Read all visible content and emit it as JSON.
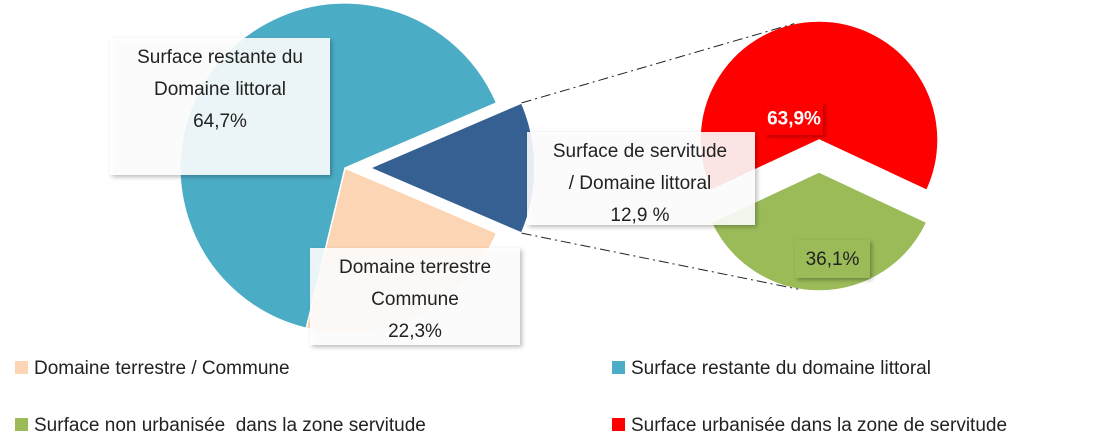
{
  "chart_data": {
    "type": "pie-of-pie",
    "main": {
      "categories": [
        [
          "Surface restante du",
          "Domaine littoral"
        ],
        [
          "Domaine terrestre",
          "Commune"
        ],
        [
          "Surface de servitude",
          "/ Domaine littoral"
        ]
      ],
      "values": [
        64.7,
        22.3,
        12.9
      ],
      "value_labels": [
        "64,7%",
        "22,3%",
        "12,9 %"
      ],
      "colors": [
        "#4bacc6",
        "#fcd5b5",
        "#366092"
      ],
      "legend_names": [
        "Surface restante du domaine littoral",
        "Domaine terrestre / Commune",
        null
      ]
    },
    "secondary": {
      "categories": [
        "Surface urbanisée dans la zone de servitude",
        "Surface non urbanisée  dans la zone servitude"
      ],
      "values": [
        63.9,
        36.1
      ],
      "value_labels": [
        "63,9%",
        "36,1%"
      ],
      "colors": [
        "#ff0000",
        "#9bbb59"
      ]
    }
  }
}
